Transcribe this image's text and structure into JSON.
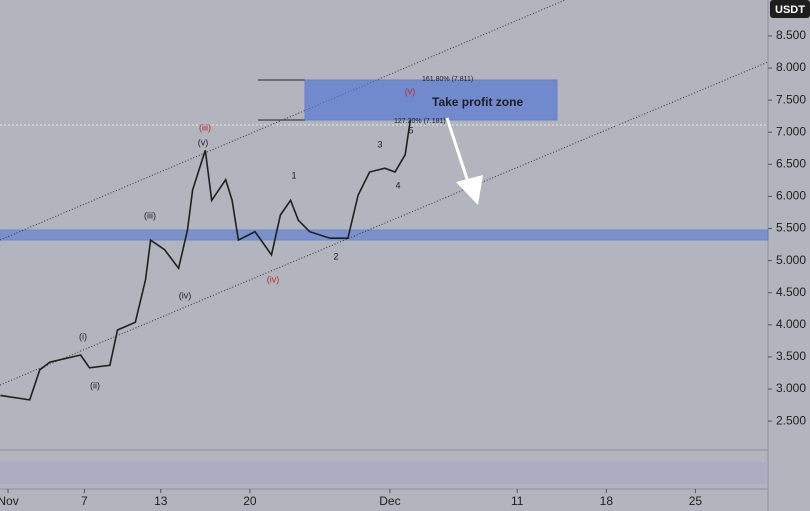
{
  "chart_data": {
    "type": "line",
    "currency": "USDT",
    "x": [
      0.4,
      2.7,
      3.5,
      4.3,
      6.7,
      7.4,
      9.0,
      9.6,
      11.0,
      11.8,
      12.2,
      13.3,
      14.4,
      15.1,
      15.5,
      16.5,
      17.0,
      18.1,
      18.6,
      19.1,
      20.4,
      21.7,
      22.4,
      23.2,
      23.8,
      24.7,
      26.3,
      27.7,
      28.5,
      29.4,
      30.6,
      31.4,
      32.2,
      32.6
    ],
    "values": [
      2.9,
      2.83,
      3.3,
      3.42,
      3.53,
      3.33,
      3.37,
      3.92,
      4.04,
      4.7,
      5.32,
      5.17,
      4.88,
      5.48,
      6.1,
      6.72,
      5.94,
      6.26,
      5.94,
      5.32,
      5.45,
      5.09,
      5.71,
      5.94,
      5.63,
      5.45,
      5.35,
      5.35,
      6.02,
      6.38,
      6.44,
      6.38,
      6.65,
      7.19
    ],
    "color": "#1f1f1f",
    "annotations": [
      "(iii)",
      "(v)",
      "(iii)",
      "(iv)",
      "(iv)",
      "(i)",
      "(ii)",
      "1",
      "2",
      "3",
      "4",
      "5",
      "(v)",
      "161.80% (7.811)",
      "127.20% (7.181)",
      "Take profit zone"
    ],
    "xlim": [
      0.37,
      60.7
    ],
    "xticks": [
      {
        "value": 1,
        "label": "Nov"
      },
      7,
      13,
      20,
      {
        "value": 31,
        "label": "Dec"
      },
      {
        "value": 41,
        "label": "11"
      },
      {
        "value": 48,
        "label": "18"
      },
      {
        "value": 55,
        "label": "25"
      }
    ],
    "ylim": [
      2.05,
      9.06
    ],
    "yticks": [
      {
        "value": 2.5,
        "label": "2.500"
      },
      {
        "value": 3,
        "label": "3.000"
      },
      {
        "value": 3.5,
        "label": "3.500"
      },
      {
        "value": 4,
        "label": "4.000"
      },
      {
        "value": 4.5,
        "label": "4.500"
      },
      {
        "value": 5,
        "label": "5.000"
      },
      {
        "value": 5.5,
        "label": "5.500"
      },
      {
        "value": 6,
        "label": "6.000"
      },
      {
        "value": 6.5,
        "label": "6.500"
      },
      {
        "value": 7,
        "label": "7.000"
      },
      {
        "value": 7.5,
        "label": "7.500"
      },
      {
        "value": 8,
        "label": "8.000"
      },
      {
        "value": 8.5,
        "label": "8.500"
      }
    ]
  }
}
